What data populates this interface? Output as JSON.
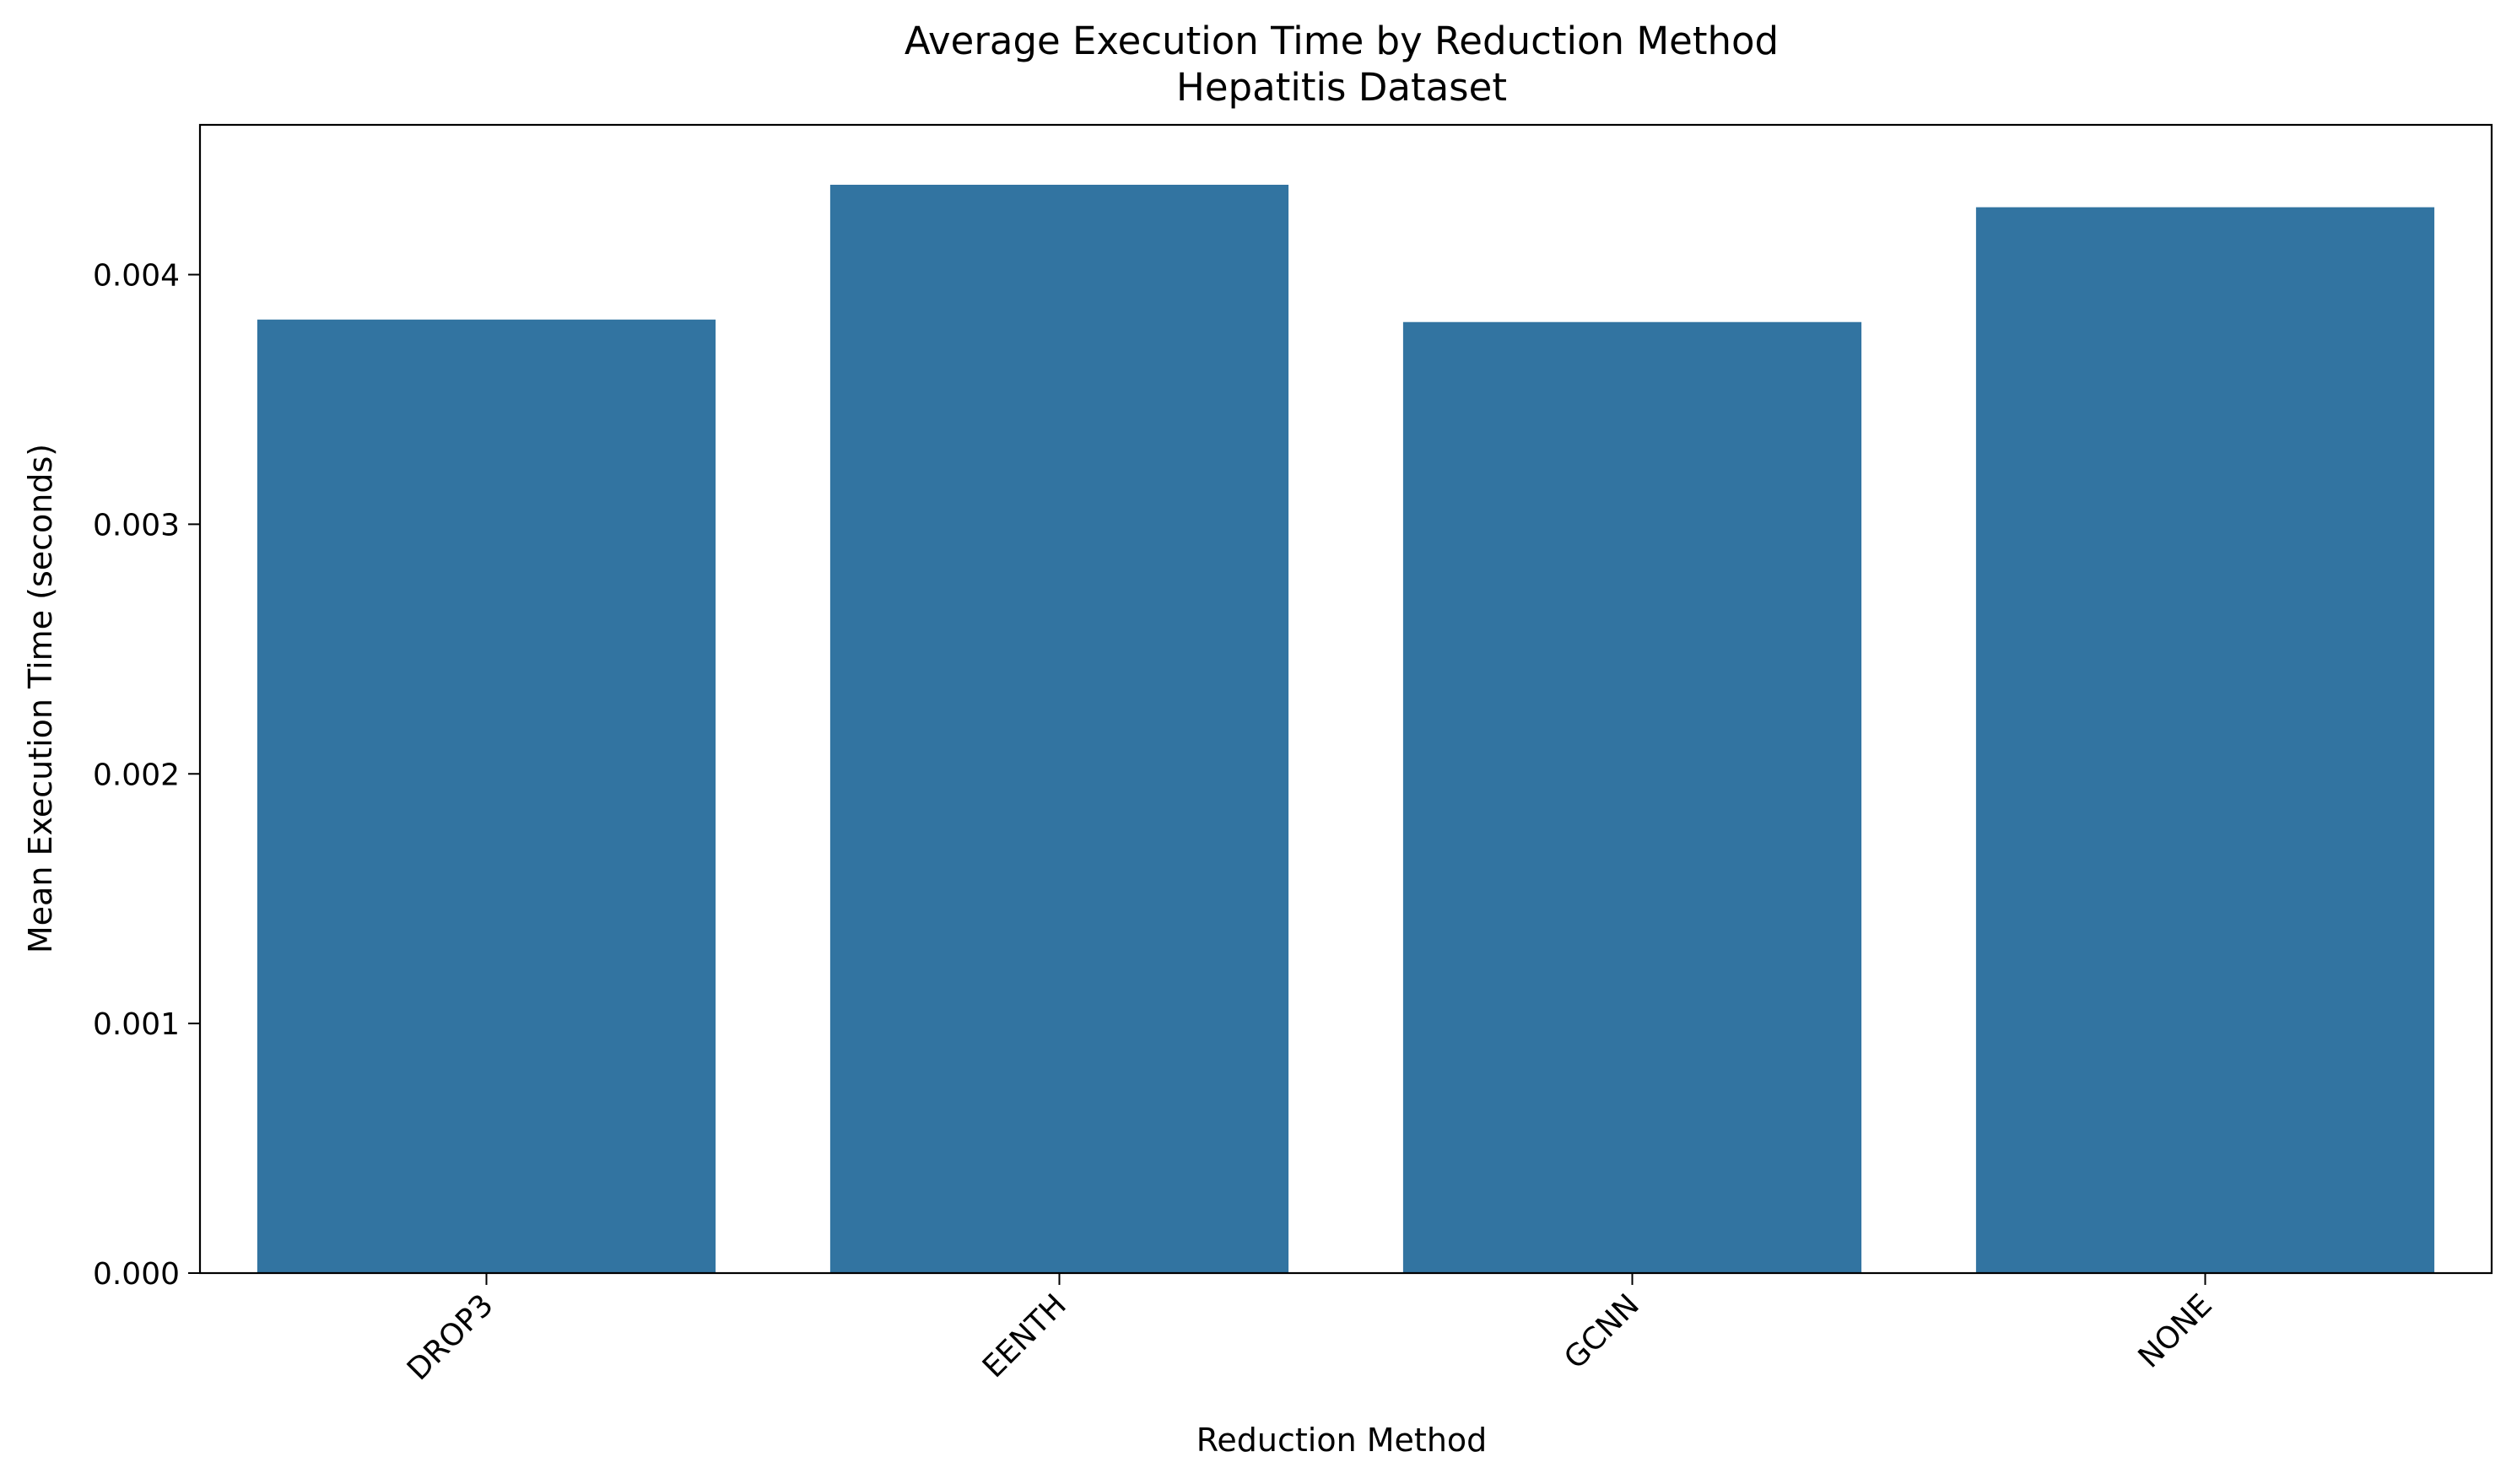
{
  "chart_data": {
    "type": "bar",
    "title": "Average Execution Time by Reduction Method",
    "subtitle": "Hepatitis Dataset",
    "xlabel": "Reduction Method",
    "ylabel": "Mean Execution Time (seconds)",
    "categories": [
      "DROP3",
      "EENTH",
      "GCNN",
      "NONE"
    ],
    "values": [
      0.00382,
      0.00436,
      0.00381,
      0.00427
    ],
    "ylim": [
      0,
      0.0046
    ],
    "yticks": [
      0.0,
      0.001,
      0.002,
      0.003,
      0.004
    ],
    "ytick_labels": [
      "0.000",
      "0.001",
      "0.002",
      "0.003",
      "0.004"
    ],
    "bar_color": "#3274a1",
    "grid": false,
    "legend": "none",
    "xtick_rotation": 45
  }
}
